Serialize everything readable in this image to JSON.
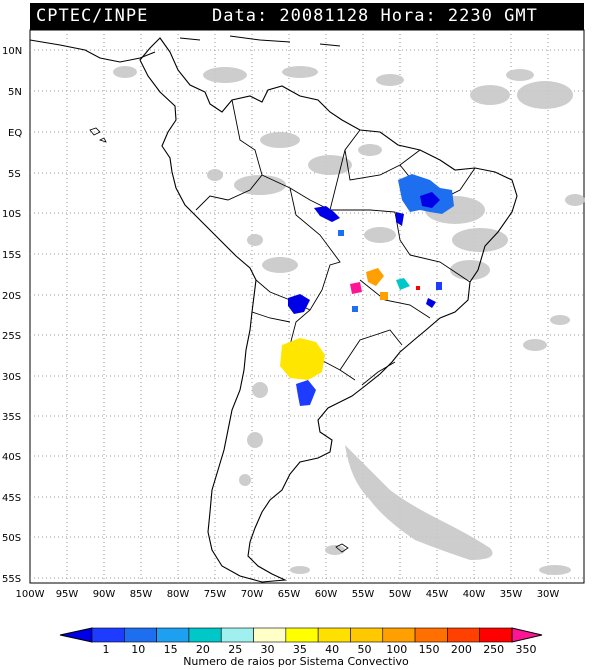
{
  "header": {
    "source": "CPTEC/INPE",
    "datetime": "Data: 20081128 Hora: 2230 GMT"
  },
  "map": {
    "lat_labels": [
      "10N",
      "5N",
      "EQ",
      "5S",
      "10S",
      "15S",
      "20S",
      "25S",
      "30S",
      "35S",
      "40S",
      "45S",
      "50S",
      "55S"
    ],
    "lon_labels": [
      "100W",
      "95W",
      "90W",
      "85W",
      "80W",
      "75W",
      "70W",
      "65W",
      "60W",
      "55W",
      "50W",
      "45W",
      "40W",
      "35W",
      "30W"
    ]
  },
  "legend": {
    "ticks": [
      "1",
      "10",
      "15",
      "20",
      "25",
      "30",
      "35",
      "40",
      "50",
      "100",
      "150",
      "200",
      "250",
      "350"
    ],
    "caption": "Numero de raios por Sistema Convectivo",
    "colors": [
      "#0000e6",
      "#1e3cff",
      "#1e6ef0",
      "#1ea0f0",
      "#00c8c8",
      "#a0f0f0",
      "#ffffc8",
      "#ffff00",
      "#ffe000",
      "#ffc800",
      "#ffa000",
      "#ff7000",
      "#ff4000",
      "#ff0000",
      "#ff1493"
    ]
  },
  "clusters": [
    {
      "name": "cluster-ne-brazil",
      "color": "#1e6ef0"
    },
    {
      "name": "cluster-argentina",
      "color": "#ffe600"
    },
    {
      "name": "cluster-orange",
      "color": "#ffa000"
    },
    {
      "name": "cluster-pink",
      "color": "#ff1493"
    }
  ]
}
